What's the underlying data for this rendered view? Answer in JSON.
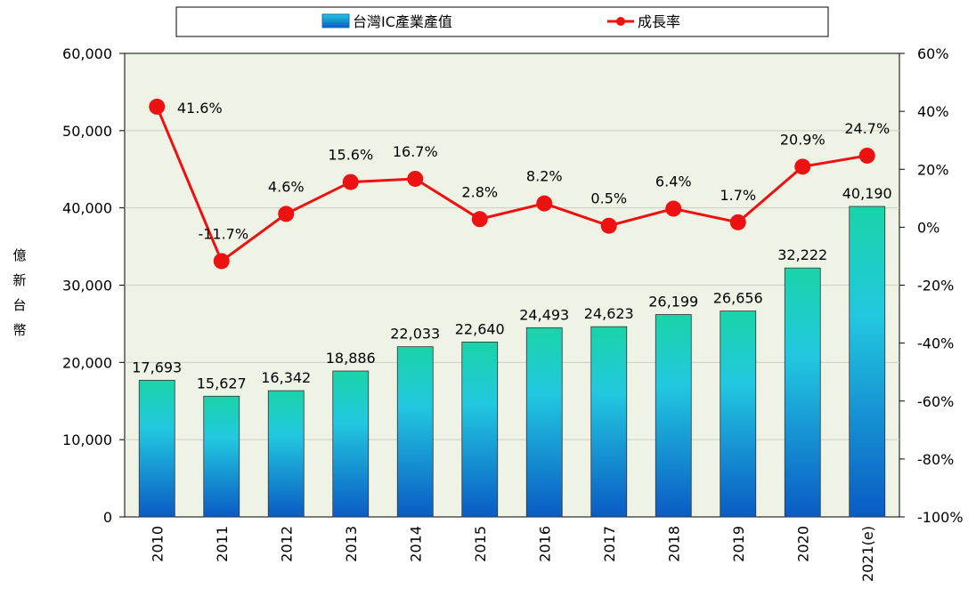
{
  "chart_data": {
    "type": "bar",
    "categories": [
      "2010",
      "2011",
      "2012",
      "2013",
      "2014",
      "2015",
      "2016",
      "2017",
      "2018",
      "2019",
      "2020",
      "2021(e)"
    ],
    "series": [
      {
        "name": "台灣IC產業產值",
        "type": "bar",
        "axis": "left",
        "values": [
          17693,
          15627,
          16342,
          18886,
          22033,
          22640,
          24493,
          24623,
          26199,
          26656,
          32222,
          40190
        ],
        "labels": [
          "17,693",
          "15,627",
          "16,342",
          "18,886",
          "22,033",
          "22,640",
          "24,493",
          "24,623",
          "26,199",
          "26,656",
          "32,222",
          "40,190"
        ]
      },
      {
        "name": "成長率",
        "type": "line",
        "axis": "right",
        "values": [
          41.6,
          -11.7,
          4.6,
          15.6,
          16.7,
          2.8,
          8.2,
          0.5,
          6.4,
          1.7,
          20.9,
          24.7
        ],
        "labels": [
          "41.6%",
          "-11.7%",
          "4.6%",
          "15.6%",
          "16.7%",
          "2.8%",
          "8.2%",
          "0.5%",
          "6.4%",
          "1.7%",
          "20.9%",
          "24.7%"
        ]
      }
    ],
    "ylabel": "億新台幣",
    "ylim": [
      0,
      60000
    ],
    "y_ticks": [
      "0",
      "10,000",
      "20,000",
      "30,000",
      "40,000",
      "50,000",
      "60,000"
    ],
    "y2lim": [
      -100,
      60
    ],
    "y2_ticks": [
      "-100%",
      "-80%",
      "-60%",
      "-40%",
      "-20%",
      "0%",
      "20%",
      "40%",
      "60%"
    ],
    "legend_position": "top",
    "grid": true,
    "colors": {
      "plot_bg": "#eef3e6",
      "bar_top": "#19d4a8",
      "bar_mid": "#22c8e0",
      "bar_bottom": "#0a5bc4",
      "line": "#ee1111",
      "marker": "#ee1111"
    }
  }
}
